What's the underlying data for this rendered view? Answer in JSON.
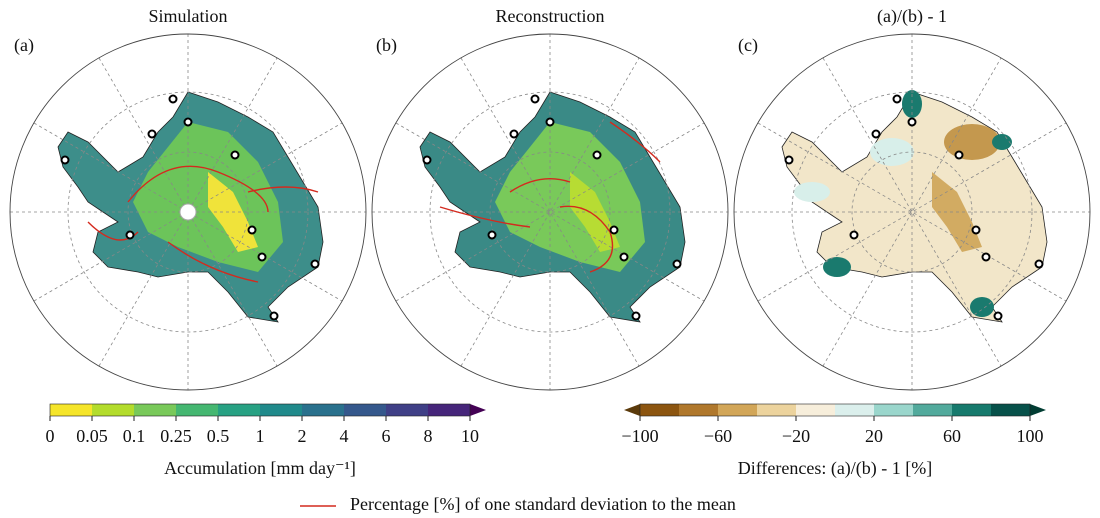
{
  "panels": [
    {
      "label": "(a)",
      "title": "Simulation"
    },
    {
      "label": "(b)",
      "title": "Reconstruction"
    },
    {
      "label": "(c)",
      "title": "(a)/(b) - 1"
    }
  ],
  "colorbar_accumulation": {
    "ticks": [
      0,
      0.05,
      0.1,
      0.25,
      0.5,
      1,
      2,
      4,
      6,
      8,
      10
    ],
    "colors": [
      "#f5e52a",
      "#b3dc2c",
      "#79c95a",
      "#45b771",
      "#27a183",
      "#208a8b",
      "#2a718d",
      "#35588c",
      "#3f3f86",
      "#46257a"
    ],
    "extend_color": "#440154",
    "label": "Accumulation [mm day⁻¹]"
  },
  "colorbar_differences": {
    "ticks": [
      {
        "value": -100,
        "label": "−100"
      },
      {
        "value": -60,
        "label": "−60"
      },
      {
        "value": -20,
        "label": "−20"
      },
      20,
      60,
      100
    ],
    "lim": [
      -100,
      100
    ],
    "colors": [
      "#8c5510",
      "#b0782c",
      "#d2a658",
      "#ecd39d",
      "#f7eedb",
      "#dbefec",
      "#9ad6cc",
      "#52aa9c",
      "#177a6d",
      "#07514a"
    ],
    "extend_colors": [
      "#5b3a0b",
      "#023d33"
    ],
    "label": "Differences: (a)/(b) - 1 [%]"
  },
  "legend": "Percentage [%] of one standard deviation to the mean"
}
